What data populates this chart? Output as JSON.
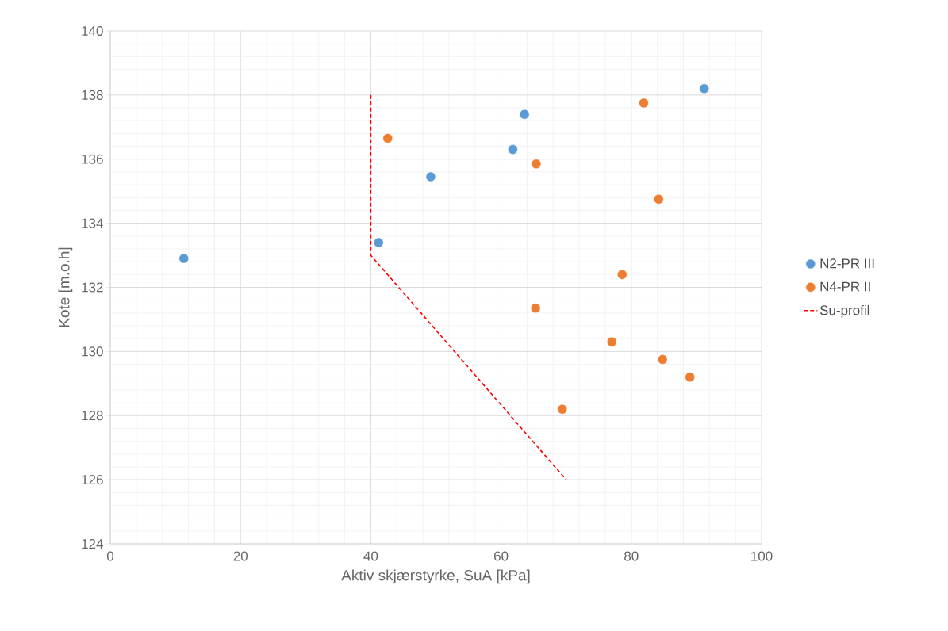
{
  "chart_data": {
    "type": "scatter",
    "xlabel": "Aktiv skjærstyrke, SuA [kPa]",
    "ylabel": "Kote [m.o.h]",
    "xlim": [
      0,
      100
    ],
    "xticks": [
      0,
      20,
      40,
      60,
      80,
      100
    ],
    "ylim": [
      124,
      140
    ],
    "yticks": [
      124,
      126,
      128,
      130,
      132,
      134,
      136,
      138,
      140
    ],
    "grid": true,
    "legend": "right",
    "series": [
      {
        "name": "N2-PR III",
        "marker": "circle",
        "color": "#5b9bd5",
        "x": [
          11.3,
          41.2,
          49.2,
          61.8,
          63.6,
          91.2
        ],
        "values": [
          132.9,
          133.4,
          135.45,
          136.3,
          137.4,
          138.2
        ]
      },
      {
        "name": "N4-PR II",
        "marker": "circle",
        "color": "#ed7d31",
        "x": [
          42.6,
          65.4,
          81.9,
          84.2,
          78.6,
          65.3,
          77.0,
          84.8,
          89.0,
          69.4
        ],
        "values": [
          136.65,
          135.85,
          137.75,
          134.75,
          132.4,
          131.35,
          130.3,
          129.75,
          129.2,
          128.2
        ]
      },
      {
        "name": "Su-profil",
        "type": "line",
        "marker": "none",
        "line_style": "dashed",
        "color": "#ff0000",
        "x": [
          40,
          40,
          70
        ],
        "values": [
          138,
          133,
          126
        ]
      }
    ]
  }
}
